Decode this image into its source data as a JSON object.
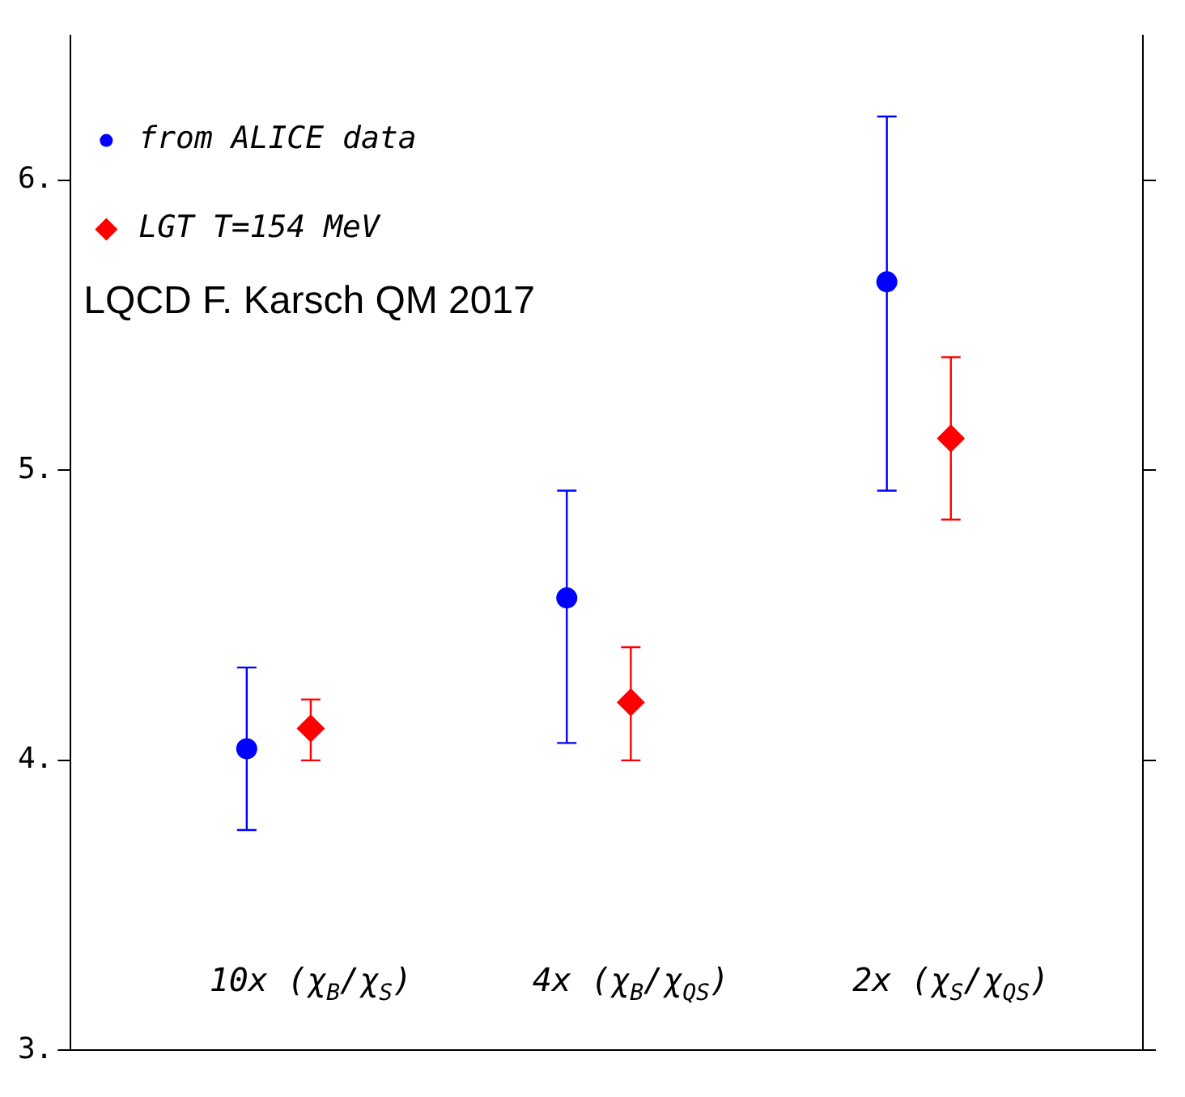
{
  "chart_data": {
    "type": "scatter",
    "categories": [
      "10x (χ$_{B}$/χ$_{S}$)",
      "4x (χ$_{B}$/χ$_{QS}$)",
      "2x (χ$_{S}$/χ$_{QS}$)"
    ],
    "series": [
      {
        "name": "from ALICE data",
        "color": "#0000ff",
        "marker": "circle",
        "values": [
          4.04,
          4.56,
          5.65
        ],
        "errors": [
          [
            3.76,
            4.32
          ],
          [
            4.06,
            4.93
          ],
          [
            4.93,
            6.22
          ]
        ]
      },
      {
        "name": "LGT T=154 MeV",
        "color": "#ff0000",
        "marker": "diamond",
        "values": [
          4.11,
          4.2,
          5.11
        ],
        "errors": [
          [
            4.0,
            4.21
          ],
          [
            4.0,
            4.39
          ],
          [
            4.83,
            5.39
          ]
        ]
      }
    ],
    "ylim": [
      3,
      6.5
    ],
    "yticks": [
      {
        "value": 3,
        "label": "3."
      },
      {
        "value": 4,
        "label": "4."
      },
      {
        "value": 5,
        "label": "5."
      },
      {
        "value": 6,
        "label": "6."
      }
    ],
    "annotations": [
      "LQCD F. Karsch QM 2017"
    ],
    "legend": "top left",
    "grid": false
  }
}
